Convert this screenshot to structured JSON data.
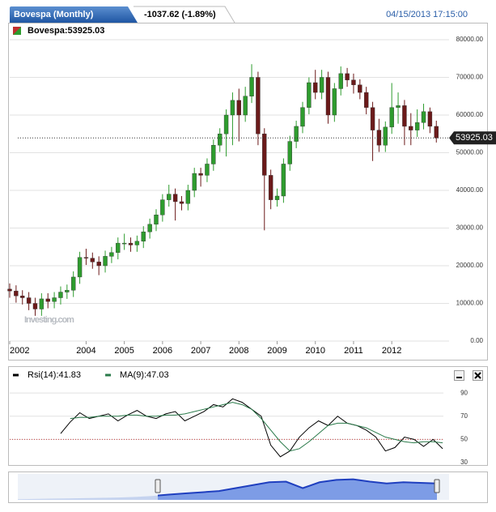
{
  "header": {
    "title": "Bovespa (Monthly)",
    "change": "-1037.62 (-1.89%)",
    "datetime": "04/15/2013 17:15:00"
  },
  "chart_data": [
    {
      "type": "candlestick",
      "legend": "Bovespa:53925.03",
      "last_label": "53925.03",
      "last_value": 53925.03,
      "watermark": "Investing.com",
      "up_color": "#2e9c2e",
      "down_color": "#6b1a1a",
      "xlim": [
        0,
        69
      ],
      "xticks": [
        {
          "value": 0,
          "label": "2002"
        },
        {
          "value": 12,
          "label": "2004"
        },
        {
          "value": 18,
          "label": "2005"
        },
        {
          "value": 24,
          "label": "2006"
        },
        {
          "value": 30,
          "label": "2007"
        },
        {
          "value": 36,
          "label": "2008"
        },
        {
          "value": 42,
          "label": "2009"
        },
        {
          "value": 48,
          "label": "2010"
        },
        {
          "value": 54,
          "label": "2011"
        },
        {
          "value": 60,
          "label": "2012"
        }
      ],
      "ylim": [
        0,
        80000
      ],
      "yticks": [
        {
          "value": 0,
          "label": "0.00"
        },
        {
          "value": 10000,
          "label": "10000.00"
        },
        {
          "value": 20000,
          "label": "20000.00"
        },
        {
          "value": 30000,
          "label": "30000.00"
        },
        {
          "value": 40000,
          "label": "40000.00"
        },
        {
          "value": 50000,
          "label": "50000.00"
        },
        {
          "value": 60000,
          "label": "60000.00"
        },
        {
          "value": 70000,
          "label": "70000.00"
        },
        {
          "value": 80000,
          "label": "80000.00"
        }
      ],
      "grid": true,
      "open": [
        13800,
        13300,
        12000,
        11500,
        10000,
        8500,
        11200,
        10500,
        11500,
        13000,
        13500,
        17000,
        22200,
        22000,
        21000,
        20000,
        22500,
        23500,
        26000,
        26000,
        25500,
        26500,
        29000,
        31000,
        33500,
        37500,
        39000,
        37000,
        36500,
        40000,
        44500,
        44000,
        47000,
        52000,
        55000,
        60000,
        63900,
        60000,
        65000,
        70000,
        55000,
        44000,
        37500,
        38500,
        47000,
        53000,
        57000,
        62000,
        68600,
        66000,
        70000,
        60000,
        67000,
        71000,
        69300,
        68000,
        66000,
        62000,
        56000,
        52000,
        56800,
        62000,
        62500,
        57000,
        56000,
        58000,
        60900,
        57000
      ],
      "high": [
        15300,
        14800,
        13500,
        13000,
        11500,
        12700,
        12700,
        13000,
        14500,
        15000,
        18500,
        23700,
        24500,
        23500,
        22500,
        24000,
        25000,
        27500,
        28500,
        27500,
        28000,
        30500,
        32500,
        35000,
        39000,
        41500,
        40500,
        38500,
        41500,
        46000,
        46000,
        48500,
        53500,
        56500,
        61500,
        66000,
        67000,
        67500,
        73500,
        71500,
        56500,
        45500,
        40500,
        48500,
        54500,
        58500,
        63500,
        70000,
        72000,
        72000,
        71500,
        68500,
        72900,
        72500,
        71000,
        69500,
        67500,
        63500,
        59000,
        58300,
        68500,
        66000,
        64000,
        60500,
        61500,
        63000,
        62000,
        58500
      ],
      "low": [
        11500,
        10200,
        9700,
        8200,
        6700,
        6700,
        8700,
        8700,
        9700,
        11200,
        11700,
        15200,
        20200,
        19200,
        17500,
        18200,
        20700,
        21700,
        24200,
        23700,
        23700,
        24700,
        27200,
        29200,
        31700,
        35700,
        32000,
        34700,
        34700,
        38200,
        41000,
        42200,
        45200,
        50200,
        49000,
        52000,
        53000,
        58200,
        63200,
        52000,
        29400,
        35000,
        35700,
        36700,
        45200,
        51200,
        55200,
        60200,
        64200,
        64200,
        57700,
        58200,
        65200,
        67500,
        65700,
        64200,
        60200,
        47800,
        50200,
        50200,
        55000,
        57700,
        52000,
        52000,
        54200,
        56200,
        55200,
        52700
      ],
      "close": [
        13300,
        12000,
        11500,
        10000,
        8500,
        11200,
        10500,
        11500,
        13000,
        13500,
        17000,
        22200,
        22000,
        21000,
        20000,
        22500,
        23500,
        26000,
        26000,
        25500,
        26500,
        29000,
        31000,
        33500,
        37500,
        39000,
        37000,
        36500,
        40000,
        44500,
        44000,
        47000,
        52000,
        55000,
        60000,
        63900,
        60000,
        65000,
        70000,
        55000,
        44000,
        37500,
        38500,
        47000,
        53000,
        57000,
        62000,
        68600,
        66000,
        70000,
        60000,
        67000,
        71000,
        69300,
        68000,
        66000,
        62000,
        56000,
        52000,
        56800,
        62000,
        62500,
        57000,
        56000,
        58000,
        60900,
        57000,
        53925
      ]
    },
    {
      "type": "line",
      "xlim": [
        0,
        69
      ],
      "ylim": [
        30,
        95
      ],
      "yticks": [
        30,
        50,
        70,
        90
      ],
      "ref_value": 50,
      "ref_color": "#d04040",
      "series": [
        {
          "name": "Rsi(14):41.83",
          "color": "#000000",
          "x": [
            8,
            9.5,
            11,
            12.5,
            14,
            15.5,
            17,
            18.5,
            20,
            21.5,
            23,
            24.5,
            26,
            27.5,
            29,
            30.5,
            32,
            33.5,
            35,
            36.5,
            38,
            39.5,
            41,
            42.5,
            44,
            45.5,
            47,
            48.5,
            50,
            51.5,
            53,
            54.5,
            56,
            57.5,
            59,
            60.5,
            62,
            63.5,
            65,
            66.5,
            68
          ],
          "values": [
            55,
            65,
            73,
            68,
            70,
            72,
            66,
            71,
            75,
            70,
            68,
            72,
            74,
            66,
            70,
            74,
            80,
            78,
            85,
            82,
            76,
            70,
            45,
            35,
            40,
            52,
            60,
            66,
            62,
            70,
            64,
            62,
            58,
            52,
            40,
            43,
            52,
            50,
            44,
            50,
            42
          ]
        },
        {
          "name": "MA(9):47.03",
          "color": "#2a7a4a",
          "x": [
            9.5,
            11,
            12.5,
            14,
            15.5,
            17,
            18.5,
            20,
            21.5,
            23,
            24.5,
            26,
            27.5,
            29,
            30.5,
            32,
            33.5,
            35,
            36.5,
            38,
            39.5,
            41,
            42.5,
            44,
            45.5,
            47,
            48.5,
            50,
            51.5,
            53,
            54.5,
            56,
            57.5,
            59,
            60.5,
            62,
            63.5,
            65,
            66.5,
            68
          ],
          "values": [
            68,
            69,
            69,
            70,
            70,
            70,
            71,
            71,
            70,
            70,
            71,
            71,
            72,
            74,
            76,
            78,
            80,
            82,
            80,
            76,
            68,
            58,
            48,
            40,
            42,
            48,
            55,
            62,
            64,
            64,
            62,
            60,
            56,
            52,
            50,
            48,
            47,
            48,
            48,
            47
          ]
        }
      ]
    },
    {
      "type": "area",
      "ylim": [
        0,
        80000
      ],
      "values": [
        2000,
        3000,
        4000,
        5000,
        6000,
        7000,
        8000,
        10000,
        13000,
        18000,
        22000,
        26000,
        30000,
        40000,
        50000,
        60000,
        62000,
        40000,
        60000,
        68000,
        70000,
        62000,
        56000,
        60000,
        58000,
        56000
      ]
    }
  ]
}
